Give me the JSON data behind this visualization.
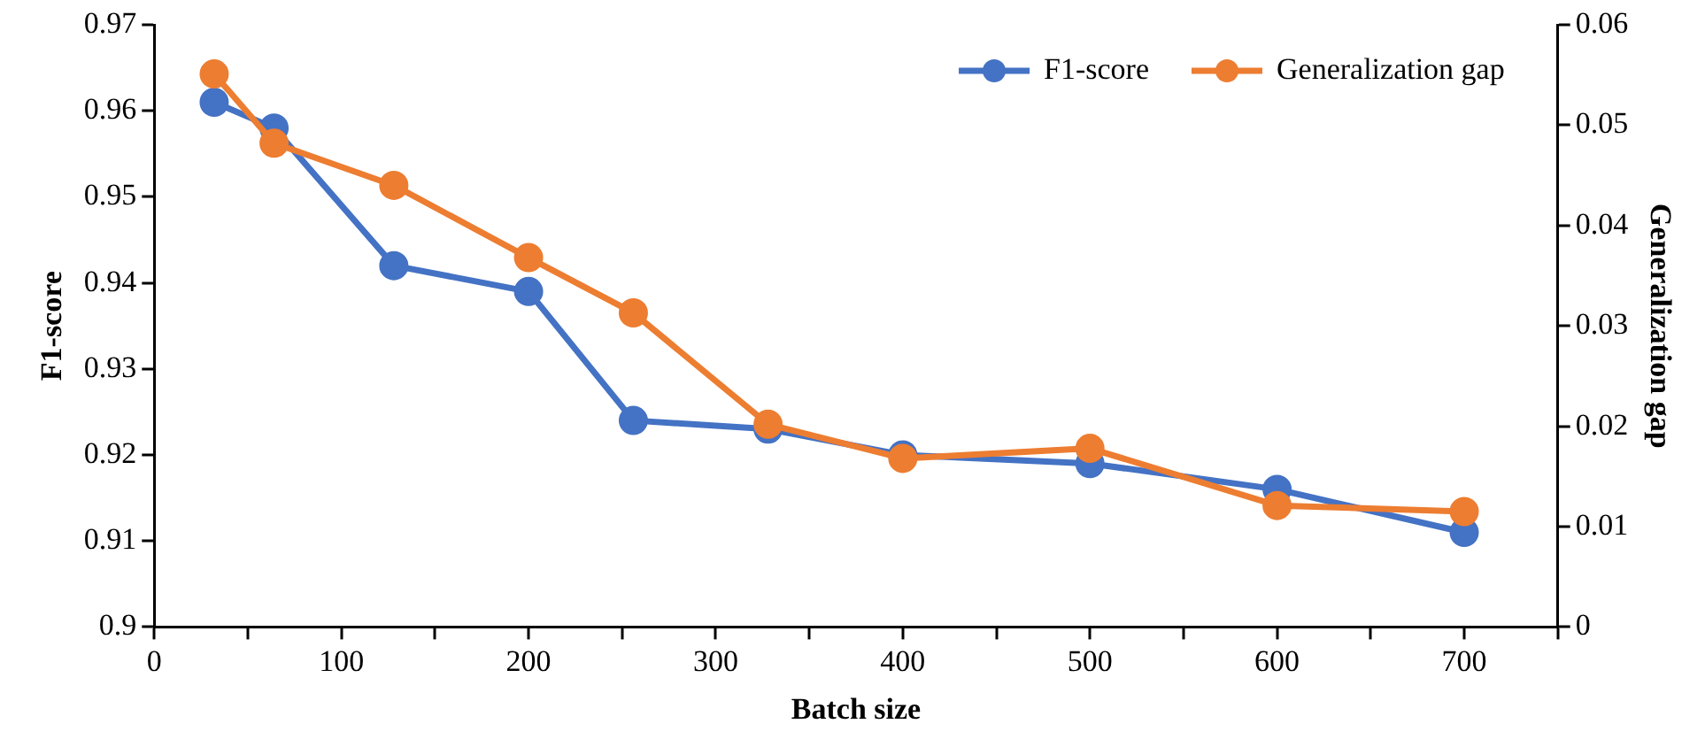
{
  "chart_data": {
    "type": "line",
    "xlabel": "Batch size",
    "ylabel": "F1-score",
    "y2label": "Generalization gap",
    "x": [
      32,
      64,
      128,
      200,
      256,
      328,
      400,
      500,
      600,
      700
    ],
    "series": [
      {
        "name": "F1-score",
        "color": "#4472c4",
        "values": [
          0.961,
          0.958,
          0.942,
          0.939,
          0.924,
          0.923,
          0.92,
          0.919,
          0.916,
          0.911
        ]
      },
      {
        "name": "Generalization gap",
        "color": "#ed7d31",
        "axis": "y2",
        "values": [
          0.0551,
          0.0482,
          0.044,
          0.0368,
          0.0313,
          0.0202,
          0.0168,
          0.0178,
          0.0121,
          0.0115
        ]
      }
    ],
    "xlim": [
      0,
      750
    ],
    "xticks": [
      0,
      {
        "value": 50,
        "label": null
      },
      100,
      {
        "value": 150,
        "label": null
      },
      200,
      {
        "value": 250,
        "label": null
      },
      300,
      {
        "value": 350,
        "label": null
      },
      400,
      {
        "value": 450,
        "label": null
      },
      500,
      {
        "value": 550,
        "label": null
      },
      600,
      {
        "value": 650,
        "label": null
      },
      700,
      {
        "value": 750,
        "label": null
      }
    ],
    "ylim": [
      0.9,
      0.97
    ],
    "yticks": [
      0.9,
      0.91,
      0.92,
      0.93,
      0.94,
      0.95,
      0.96,
      0.97
    ],
    "y2lim": [
      0,
      0.06
    ],
    "y2ticks": [
      0,
      0.01,
      0.02,
      0.03,
      0.04,
      0.05,
      0.06
    ],
    "grid": false,
    "legend": "top right",
    "marker": "circle",
    "line_style": "solid"
  }
}
